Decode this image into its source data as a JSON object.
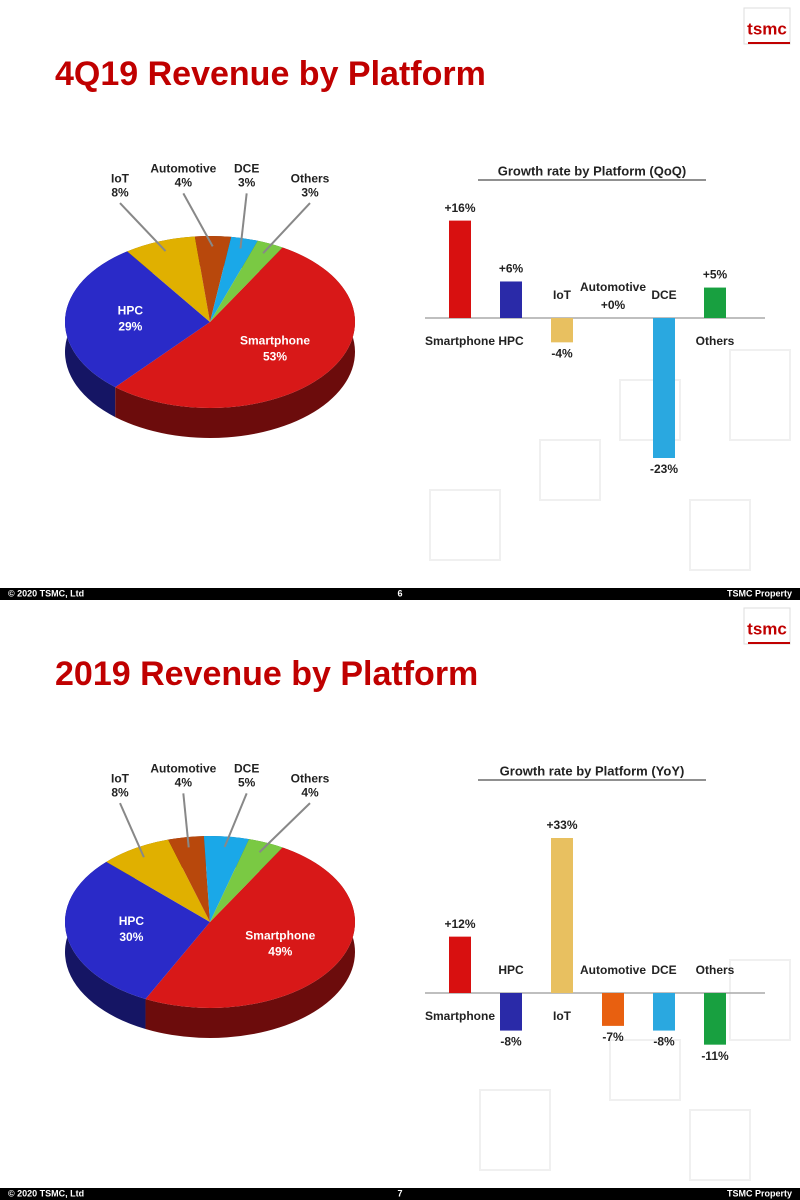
{
  "slides": [
    {
      "title": "4Q19 Revenue by Platform",
      "logo": "tsmc",
      "footer_left": "© 2020 TSMC, Ltd",
      "page": "6",
      "footer_right": "TSMC Property"
    },
    {
      "title": "2019 Revenue by Platform",
      "logo": "tsmc",
      "footer_left": "© 2020 TSMC, Ltd",
      "page": "7",
      "footer_right": "TSMC Property"
    }
  ],
  "chart_data": [
    {
      "type": "pie",
      "categories": [
        "Smartphone",
        "HPC",
        "IoT",
        "Automotive",
        "DCE",
        "Others"
      ],
      "values": [
        53,
        29,
        8,
        4,
        3,
        3
      ],
      "value_labels": [
        "53%",
        "29%",
        "8%",
        "4%",
        "3%",
        "3%"
      ],
      "colors": [
        "#d81818",
        "#2a2ac8",
        "#e0b000",
        "#b8480c",
        "#1aa8e8",
        "#7ac943"
      ]
    },
    {
      "type": "bar",
      "title": "Growth rate by Platform (QoQ)",
      "categories": [
        "Smartphone",
        "HPC",
        "IoT",
        "Automotive",
        "DCE",
        "Others"
      ],
      "values": [
        16,
        6,
        -4,
        0,
        -23,
        5
      ],
      "value_labels": [
        "+16%",
        "+6%",
        "-4%",
        "+0%",
        "-23%",
        "+5%"
      ],
      "colors": [
        "#d81010",
        "#2a2aa8",
        "#e8c060",
        "#e86010",
        "#2aa8e0",
        "#18a040"
      ]
    },
    {
      "type": "pie",
      "categories": [
        "Smartphone",
        "HPC",
        "IoT",
        "Automotive",
        "DCE",
        "Others"
      ],
      "values": [
        49,
        30,
        8,
        4,
        5,
        4
      ],
      "value_labels": [
        "49%",
        "30%",
        "8%",
        "4%",
        "5%",
        "4%"
      ],
      "colors": [
        "#d81818",
        "#2a2ac8",
        "#e0b000",
        "#b8480c",
        "#1aa8e8",
        "#7ac943"
      ]
    },
    {
      "type": "bar",
      "title": "Growth rate by Platform (YoY)",
      "categories": [
        "Smartphone",
        "HPC",
        "IoT",
        "Automotive",
        "DCE",
        "Others"
      ],
      "values": [
        12,
        -8,
        33,
        -7,
        -8,
        -11
      ],
      "value_labels": [
        "+12%",
        "-8%",
        "+33%",
        "-7%",
        "-8%",
        "-11%"
      ],
      "colors": [
        "#d81010",
        "#2a2aa8",
        "#e8c060",
        "#e86010",
        "#2aa8e0",
        "#18a040"
      ]
    }
  ]
}
